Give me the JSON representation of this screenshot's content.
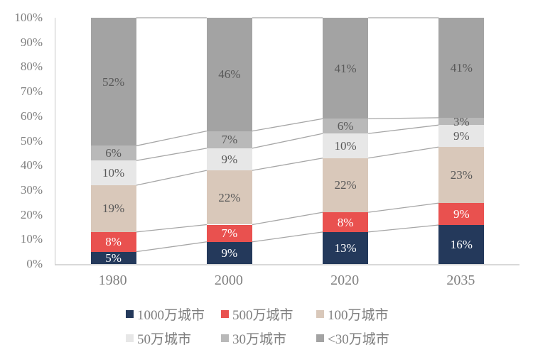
{
  "chart_data": {
    "type": "bar",
    "variant": "stacked-100-percent-column",
    "title": "",
    "xlabel": "",
    "ylabel": "",
    "categories": [
      "1980",
      "2000",
      "2020",
      "2035"
    ],
    "series": [
      {
        "name": "1000万城市",
        "color": "#24395b",
        "label_color": "#ffffff",
        "values": [
          5,
          9,
          13,
          16
        ],
        "labels": [
          "5%",
          "9%",
          "13%",
          "16%"
        ]
      },
      {
        "name": "500万城市",
        "color": "#e9514f",
        "label_color": "#ffffff",
        "values": [
          8,
          7,
          8,
          9
        ],
        "labels": [
          "8%",
          "7%",
          "8%",
          "9%"
        ]
      },
      {
        "name": "100万城市",
        "color": "#d9c8ba",
        "label_color": "#595959",
        "values": [
          19,
          22,
          22,
          23
        ],
        "labels": [
          "19%",
          "22%",
          "22%",
          "23%"
        ]
      },
      {
        "name": "50万城市",
        "color": "#e7e7e7",
        "label_color": "#595959",
        "values": [
          10,
          9,
          10,
          9
        ],
        "labels": [
          "10%",
          "9%",
          "10%",
          "9%"
        ]
      },
      {
        "name": "30万城市",
        "color": "#b9b9b9",
        "label_color": "#595959",
        "values": [
          6,
          7,
          6,
          3
        ],
        "labels": [
          "6%",
          "7%",
          "6%",
          "3%"
        ]
      },
      {
        "name": "<30万城市",
        "color": "#a3a3a3",
        "label_color": "#595959",
        "values": [
          52,
          46,
          41,
          41
        ],
        "labels": [
          "52%",
          "46%",
          "41%",
          "41%"
        ]
      }
    ],
    "y_ticks": [
      "0%",
      "10%",
      "20%",
      "30%",
      "40%",
      "50%",
      "60%",
      "70%",
      "80%",
      "90%",
      "100%"
    ],
    "ylim": [
      0,
      100
    ],
    "grid": false,
    "legend_position": "bottom",
    "legend_rows": [
      [
        "1000万城市",
        "500万城市",
        "100万城市"
      ],
      [
        "50万城市",
        "30万城市",
        "<30万城市"
      ]
    ],
    "connector_lines": true,
    "connector_color": "#a6a6a6",
    "axis_text_color": "#7f7f7f",
    "axis_line_color": "#d9d9d9"
  }
}
